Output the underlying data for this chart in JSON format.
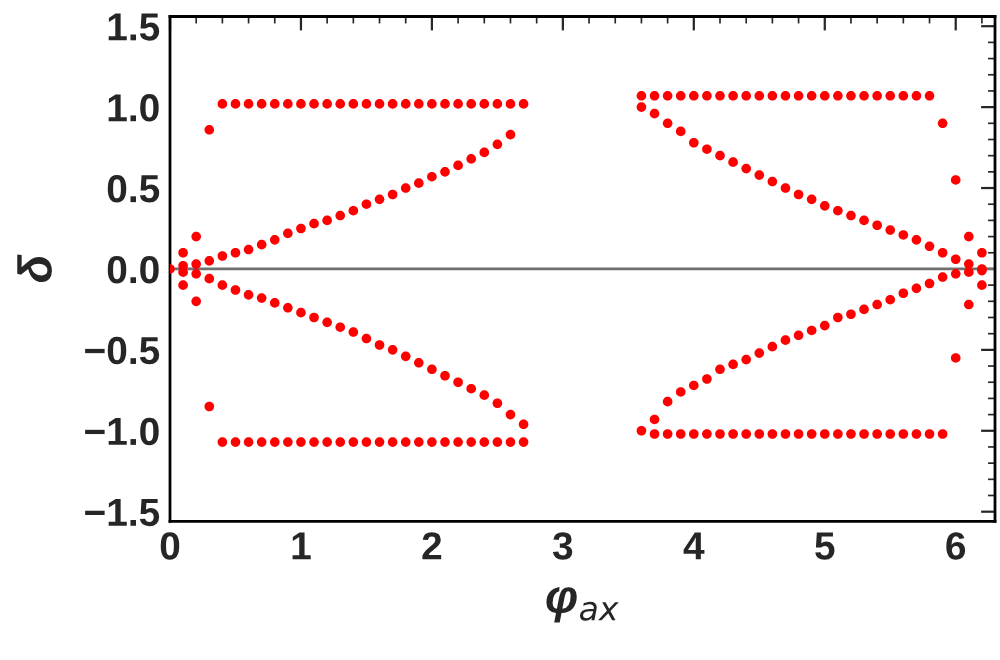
{
  "chart_data": {
    "type": "scatter",
    "xlabel": "φ$_{ax}$",
    "ylabel": "δ",
    "xlim": [
      0,
      6.3
    ],
    "ylim": [
      -1.56,
      1.56
    ],
    "xticks": [
      0,
      1,
      2,
      3,
      4,
      5,
      6
    ],
    "yticks": [
      {
        "value": -1.5,
        "label": "−1.5"
      },
      {
        "value": -1,
        "label": "−1.0"
      },
      {
        "value": -0.5,
        "label": "−0.5"
      },
      {
        "value": 0,
        "label": "0.0"
      },
      {
        "value": 0.5,
        "label": "0.5"
      },
      {
        "value": 1,
        "label": "1.0"
      },
      {
        "value": 1.5,
        "label": "1.5"
      }
    ],
    "marker": "circle",
    "grid": false,
    "legend": false,
    "ref_lines": [
      {
        "axis": "y",
        "value": 0,
        "color": "#707070"
      }
    ],
    "series": [
      {
        "color": "#ff0000",
        "x": [
          0.1,
          0.1,
          0.2,
          0.2,
          0.3,
          0.3,
          0.4,
          0.4,
          0.5,
          0.5,
          0.6,
          0.6,
          0.7,
          0.7,
          0.8,
          0.8,
          0.9,
          0.9,
          1.0,
          1.0,
          1.1,
          1.1,
          1.2,
          1.2,
          1.3,
          1.3,
          1.4,
          1.4,
          1.5,
          1.5,
          1.6,
          1.6,
          1.7,
          1.7,
          1.8,
          1.8,
          1.9,
          1.9,
          2.0,
          2.0,
          2.1,
          2.1,
          2.2,
          2.2,
          2.3,
          2.3,
          2.4,
          2.4,
          2.5,
          2.5,
          2.6,
          2.6,
          2.7
        ],
        "values": [
          0.02,
          0.1,
          0.03,
          0.2,
          0.05,
          0.86,
          0.08,
          1.02,
          0.1,
          1.02,
          0.12,
          1.02,
          0.15,
          1.02,
          0.18,
          1.02,
          0.22,
          1.02,
          0.25,
          1.02,
          0.28,
          1.02,
          0.3,
          1.02,
          0.33,
          1.02,
          0.36,
          1.02,
          0.4,
          1.02,
          0.43,
          1.02,
          0.46,
          1.02,
          0.5,
          1.02,
          0.53,
          1.02,
          0.57,
          1.02,
          0.6,
          1.02,
          0.64,
          1.02,
          0.68,
          1.02,
          0.72,
          1.02,
          0.77,
          1.02,
          0.83,
          1.02,
          1.02
        ]
      },
      {
        "color": "#ff0000",
        "x": [
          0.0,
          0.1,
          0.1,
          0.2,
          0.2,
          0.3,
          0.3,
          0.4,
          0.4,
          0.5,
          0.5,
          0.6,
          0.6,
          0.7,
          0.7,
          0.8,
          0.8,
          0.9,
          0.9,
          1.0,
          1.0,
          1.1,
          1.1,
          1.2,
          1.2,
          1.3,
          1.3,
          1.4,
          1.4,
          1.5,
          1.5,
          1.6,
          1.6,
          1.7,
          1.7,
          1.8,
          1.8,
          1.9,
          1.9,
          2.0,
          2.0,
          2.1,
          2.1,
          2.2,
          2.2,
          2.3,
          2.3,
          2.4,
          2.4,
          2.5,
          2.5,
          2.6,
          2.6,
          2.7,
          2.7
        ],
        "values": [
          0.0,
          -0.02,
          -0.1,
          -0.03,
          -0.2,
          -0.06,
          -0.85,
          -0.1,
          -1.07,
          -0.13,
          -1.07,
          -0.16,
          -1.07,
          -0.18,
          -1.07,
          -0.21,
          -1.07,
          -0.24,
          -1.07,
          -0.27,
          -1.07,
          -0.3,
          -1.07,
          -0.33,
          -1.07,
          -0.36,
          -1.07,
          -0.39,
          -1.07,
          -0.43,
          -1.07,
          -0.47,
          -1.07,
          -0.5,
          -1.07,
          -0.54,
          -1.07,
          -0.58,
          -1.07,
          -0.62,
          -1.07,
          -0.66,
          -1.07,
          -0.7,
          -1.07,
          -0.74,
          -1.07,
          -0.78,
          -1.07,
          -0.83,
          -1.07,
          -0.9,
          -1.07,
          -0.96,
          -1.07
        ]
      },
      {
        "color": "#ff0000",
        "x": [
          3.6,
          3.6,
          3.7,
          3.7,
          3.8,
          3.8,
          3.9,
          3.9,
          4.0,
          4.0,
          4.1,
          4.1,
          4.2,
          4.2,
          4.3,
          4.3,
          4.4,
          4.4,
          4.5,
          4.5,
          4.6,
          4.6,
          4.7,
          4.7,
          4.8,
          4.8,
          4.9,
          4.9,
          5.0,
          5.0,
          5.1,
          5.1,
          5.2,
          5.2,
          5.3,
          5.3,
          5.4,
          5.4,
          5.5,
          5.5,
          5.6,
          5.6,
          5.7,
          5.7,
          5.8,
          5.8,
          5.9,
          5.9,
          6.0,
          6.0,
          6.1,
          6.1,
          6.2,
          6.2
        ],
        "values": [
          1.0,
          1.07,
          0.96,
          1.07,
          0.9,
          1.07,
          0.85,
          1.07,
          0.78,
          1.07,
          0.74,
          1.07,
          0.7,
          1.07,
          0.66,
          1.07,
          0.62,
          1.07,
          0.58,
          1.07,
          0.54,
          1.07,
          0.5,
          1.07,
          0.46,
          1.07,
          0.43,
          1.07,
          0.39,
          1.07,
          0.36,
          1.07,
          0.33,
          1.07,
          0.3,
          1.07,
          0.27,
          1.07,
          0.24,
          1.07,
          0.21,
          1.07,
          0.18,
          1.07,
          0.14,
          1.07,
          0.1,
          0.9,
          0.06,
          0.55,
          0.03,
          0.2,
          0.0,
          0.1
        ]
      },
      {
        "color": "#ff0000",
        "x": [
          3.6,
          3.7,
          3.7,
          3.8,
          3.8,
          3.9,
          3.9,
          4.0,
          4.0,
          4.1,
          4.1,
          4.2,
          4.2,
          4.3,
          4.3,
          4.4,
          4.4,
          4.5,
          4.5,
          4.6,
          4.6,
          4.7,
          4.7,
          4.8,
          4.8,
          4.9,
          4.9,
          5.0,
          5.0,
          5.1,
          5.1,
          5.2,
          5.2,
          5.3,
          5.3,
          5.4,
          5.4,
          5.5,
          5.5,
          5.6,
          5.6,
          5.7,
          5.7,
          5.8,
          5.8,
          5.9,
          5.9,
          6.0,
          6.0,
          6.1,
          6.1,
          6.2,
          6.2
        ],
        "values": [
          -1.0,
          -0.93,
          -1.02,
          -0.82,
          -1.02,
          -0.76,
          -1.02,
          -0.72,
          -1.02,
          -0.68,
          -1.02,
          -0.62,
          -1.02,
          -0.59,
          -1.02,
          -0.56,
          -1.02,
          -0.52,
          -1.02,
          -0.48,
          -1.02,
          -0.44,
          -1.02,
          -0.41,
          -1.02,
          -0.38,
          -1.02,
          -0.35,
          -1.02,
          -0.3,
          -1.02,
          -0.28,
          -1.02,
          -0.25,
          -1.02,
          -0.22,
          -1.02,
          -0.19,
          -1.02,
          -0.15,
          -1.02,
          -0.12,
          -1.02,
          -0.09,
          -1.02,
          -0.05,
          -1.02,
          -0.03,
          -0.55,
          -0.02,
          -0.22,
          -0.01,
          -0.1
        ]
      }
    ]
  }
}
